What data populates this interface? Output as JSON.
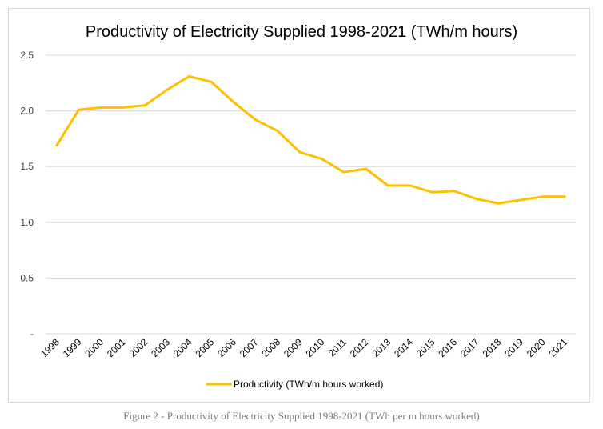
{
  "chart_data": {
    "type": "line",
    "title": "Productivity of Electricity Supplied 1998-2021 (TWh/m hours)",
    "xlabel": "",
    "ylabel": "",
    "categories": [
      "1998",
      "1999",
      "2000",
      "2001",
      "2002",
      "2003",
      "2004",
      "2005",
      "2006",
      "2007",
      "2008",
      "2009",
      "2010",
      "2011",
      "2012",
      "2013",
      "2014",
      "2015",
      "2016",
      "2017",
      "2018",
      "2019",
      "2020",
      "2021"
    ],
    "series": [
      {
        "name": "Productivity (TWh/m hours worked)",
        "color": "#FFC000",
        "values": [
          1.69,
          2.01,
          2.03,
          2.03,
          2.05,
          2.19,
          2.31,
          2.26,
          2.08,
          1.92,
          1.82,
          1.63,
          1.57,
          1.45,
          1.48,
          1.33,
          1.33,
          1.27,
          1.28,
          1.21,
          1.17,
          1.2,
          1.23,
          1.23
        ]
      }
    ],
    "ylim": [
      0,
      2.5
    ],
    "yticks": [
      0,
      0.5,
      1.0,
      1.5,
      2.0,
      2.5
    ],
    "ytick_labels": [
      "-",
      "0.5",
      "1.0",
      "1.5",
      "2.0",
      "2.5"
    ],
    "grid": true,
    "legend_position": "bottom",
    "gridline_color": "#d9d9d9"
  },
  "caption": "Figure 2 - Productivity of Electricity Supplied 1998-2021 (TWh per m hours worked)"
}
